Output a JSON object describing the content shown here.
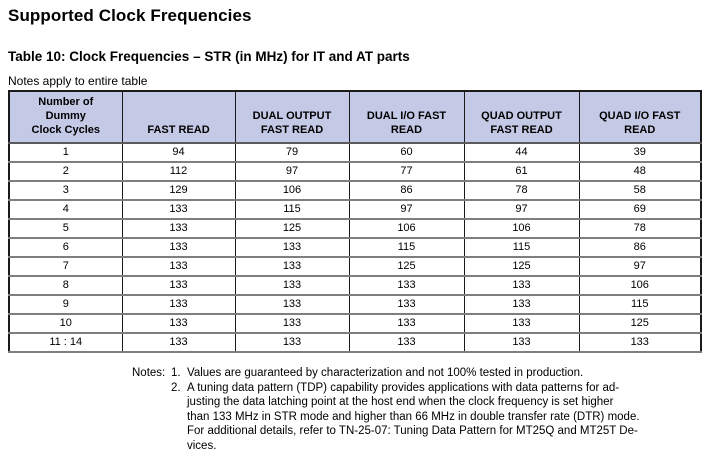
{
  "page": {
    "title": "Supported Clock Frequencies"
  },
  "table": {
    "caption": "Table 10: Clock Frequencies – STR (in MHz) for IT and AT parts",
    "note_above": "Notes apply to entire table",
    "columns": [
      "Number of\nDummy\nClock Cycles",
      "FAST READ",
      "DUAL OUTPUT\nFAST READ",
      "DUAL I/O FAST\nREAD",
      "QUAD OUTPUT\nFAST READ",
      "QUAD I/O FAST\nREAD"
    ],
    "rows": [
      [
        "1",
        "94",
        "79",
        "60",
        "44",
        "39"
      ],
      [
        "2",
        "112",
        "97",
        "77",
        "61",
        "48"
      ],
      [
        "3",
        "129",
        "106",
        "86",
        "78",
        "58"
      ],
      [
        "4",
        "133",
        "115",
        "97",
        "97",
        "69"
      ],
      [
        "5",
        "133",
        "125",
        "106",
        "106",
        "78"
      ],
      [
        "6",
        "133",
        "133",
        "115",
        "115",
        "86"
      ],
      [
        "7",
        "133",
        "133",
        "125",
        "125",
        "97"
      ],
      [
        "8",
        "133",
        "133",
        "133",
        "133",
        "106"
      ],
      [
        "9",
        "133",
        "133",
        "133",
        "133",
        "115"
      ],
      [
        "10",
        "133",
        "133",
        "133",
        "133",
        "125"
      ],
      [
        "11 : 14",
        "133",
        "133",
        "133",
        "133",
        "133"
      ]
    ]
  },
  "notes": {
    "label": "Notes:",
    "items": [
      {
        "number": "1.",
        "lines": [
          "Values are guaranteed by characterization and not 100% tested in production."
        ]
      },
      {
        "number": "2.",
        "lines": [
          "A tuning data pattern (TDP) capability provides applications with data patterns for ad-",
          "justing the data latching point at the host end when the clock frequency is set higher",
          "than 133 MHz in STR mode and higher than 66 MHz in double transfer rate (DTR) mode.",
          "For additional details, refer to TN-25-07: Tuning Data Pattern for MT25Q and MT25T De-",
          "vices."
        ]
      }
    ]
  },
  "colors": {
    "header_fill": "#c4c9e6",
    "grid_dark": "#1a1a1a",
    "grid_gray": "#7e7e7e",
    "text": "#000000"
  }
}
